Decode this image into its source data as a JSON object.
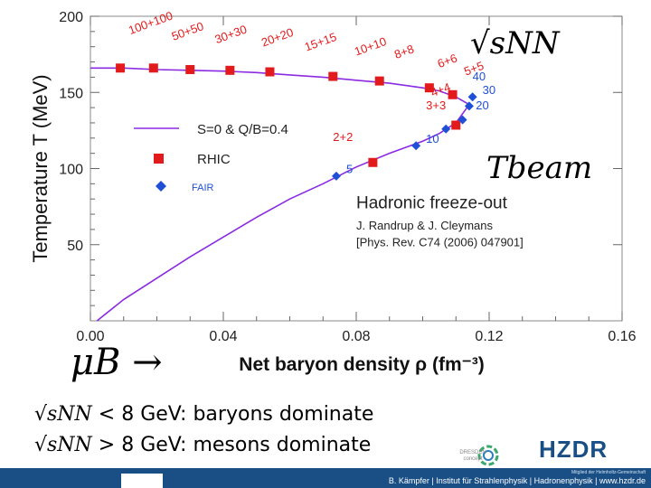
{
  "chart_data": {
    "type": "line",
    "xlabel": "Net baryon density ρ (fm⁻³)",
    "ylabel": "Temperature T (MeV)",
    "xlim": [
      0.0,
      0.16
    ],
    "ylim": [
      0,
      200
    ],
    "xticks": [
      "0.00",
      "0.04",
      "0.08",
      "0.12",
      "0.16"
    ],
    "yticks": [
      "50",
      "100",
      "150",
      "200"
    ],
    "legend": [
      {
        "label": "S=0 & Q/B=0.4",
        "marker": "line",
        "color": "#8a2be2"
      },
      {
        "label": "RHIC",
        "marker": "square",
        "color": "#e31a1c"
      },
      {
        "label": "FAIR",
        "marker": "diamond",
        "color": "#1f4fd6"
      }
    ],
    "series": [
      {
        "name": "S=0 & Q/B=0.4",
        "color": "#8a2be2",
        "x": [
          0.0,
          0.01,
          0.02,
          0.03,
          0.04,
          0.05,
          0.06,
          0.07,
          0.08,
          0.09,
          0.1,
          0.105,
          0.11,
          0.114
        ],
        "y": [
          166,
          166,
          165,
          164.5,
          164,
          163,
          161.5,
          160,
          158,
          156,
          153,
          151,
          147,
          142
        ]
      },
      {
        "name": "S=0 & Q/B=0.4 lower",
        "color": "#8a2be2",
        "x": [
          0.002,
          0.01,
          0.02,
          0.03,
          0.04,
          0.05,
          0.06,
          0.07,
          0.08,
          0.09,
          0.1,
          0.105,
          0.11,
          0.114
        ],
        "y": [
          0,
          14,
          28,
          42,
          55,
          68,
          80,
          90,
          101,
          110,
          118,
          123,
          130,
          142
        ]
      },
      {
        "name": "RHIC",
        "color": "#e31a1c",
        "x": [
          0.009,
          0.019,
          0.03,
          0.042,
          0.054,
          0.073,
          0.087,
          0.102,
          0.109,
          0.11,
          0.085
        ],
        "y": [
          166,
          166,
          165,
          164.5,
          163.5,
          160.5,
          157.5,
          153,
          148.5,
          128.5,
          104
        ]
      },
      {
        "name": "FAIR",
        "color": "#1f4fd6",
        "x": [
          0.074,
          0.098,
          0.107,
          0.112,
          0.114,
          0.115
        ],
        "y": [
          95,
          115,
          126,
          132,
          141,
          147
        ]
      }
    ],
    "annotations": [
      {
        "text": "100+100",
        "x": 0.012,
        "y": 188
      },
      {
        "text": "50+50",
        "x": 0.025,
        "y": 184
      },
      {
        "text": "30+30",
        "x": 0.038,
        "y": 182
      },
      {
        "text": "20+20",
        "x": 0.052,
        "y": 180
      },
      {
        "text": "15+15",
        "x": 0.065,
        "y": 177
      },
      {
        "text": "10+10",
        "x": 0.08,
        "y": 174
      },
      {
        "text": "8+8",
        "x": 0.092,
        "y": 172
      },
      {
        "text": "6+6",
        "x": 0.105,
        "y": 166
      },
      {
        "text": "5+5",
        "x": 0.113,
        "y": 161
      },
      {
        "text": "4+4",
        "x": 0.103,
        "y": 147
      },
      {
        "text": "3+3",
        "x": 0.101,
        "y": 139
      },
      {
        "text": "2+2",
        "x": 0.073,
        "y": 118
      },
      {
        "text": "40",
        "x": 0.115,
        "y": 158
      },
      {
        "text": "30",
        "x": 0.118,
        "y": 149
      },
      {
        "text": "20",
        "x": 0.116,
        "y": 139
      },
      {
        "text": "10",
        "x": 0.101,
        "y": 117
      },
      {
        "text": "5",
        "x": 0.077,
        "y": 97
      },
      {
        "text": "Hadronic freeze-out",
        "x": 0.08,
        "y": 74
      },
      {
        "text": "J. Randrup & J. Cleymans",
        "x": 0.08,
        "y": 60
      },
      {
        "text": "[Phys. Rev. C74 (2006) 047901]",
        "x": 0.08,
        "y": 49
      }
    ]
  },
  "math": {
    "sqrt_snn": "√sNN",
    "t_beam": "Tbeam",
    "mu_b": "μB →"
  },
  "conditions": [
    {
      "prefix": "√sNN",
      "text": " < 8 GeV: baryons dominate"
    },
    {
      "prefix": "√sNN",
      "text": " > 8 GeV: mesons dominate"
    }
  ],
  "footer": {
    "text": "B. Kämpfer | Institut für Strahlenphysik | Hadronenphysik | www.hzdr.de",
    "helmholtz": "Mitglied der Helmholtz-Gemeinschaft",
    "logo": "HZDR",
    "partner": "DRESDEN concept"
  },
  "colors": {
    "purple": "#8a2be2",
    "red": "#e31a1c",
    "blue": "#1f4fd6",
    "footer": "#1a4f86"
  }
}
